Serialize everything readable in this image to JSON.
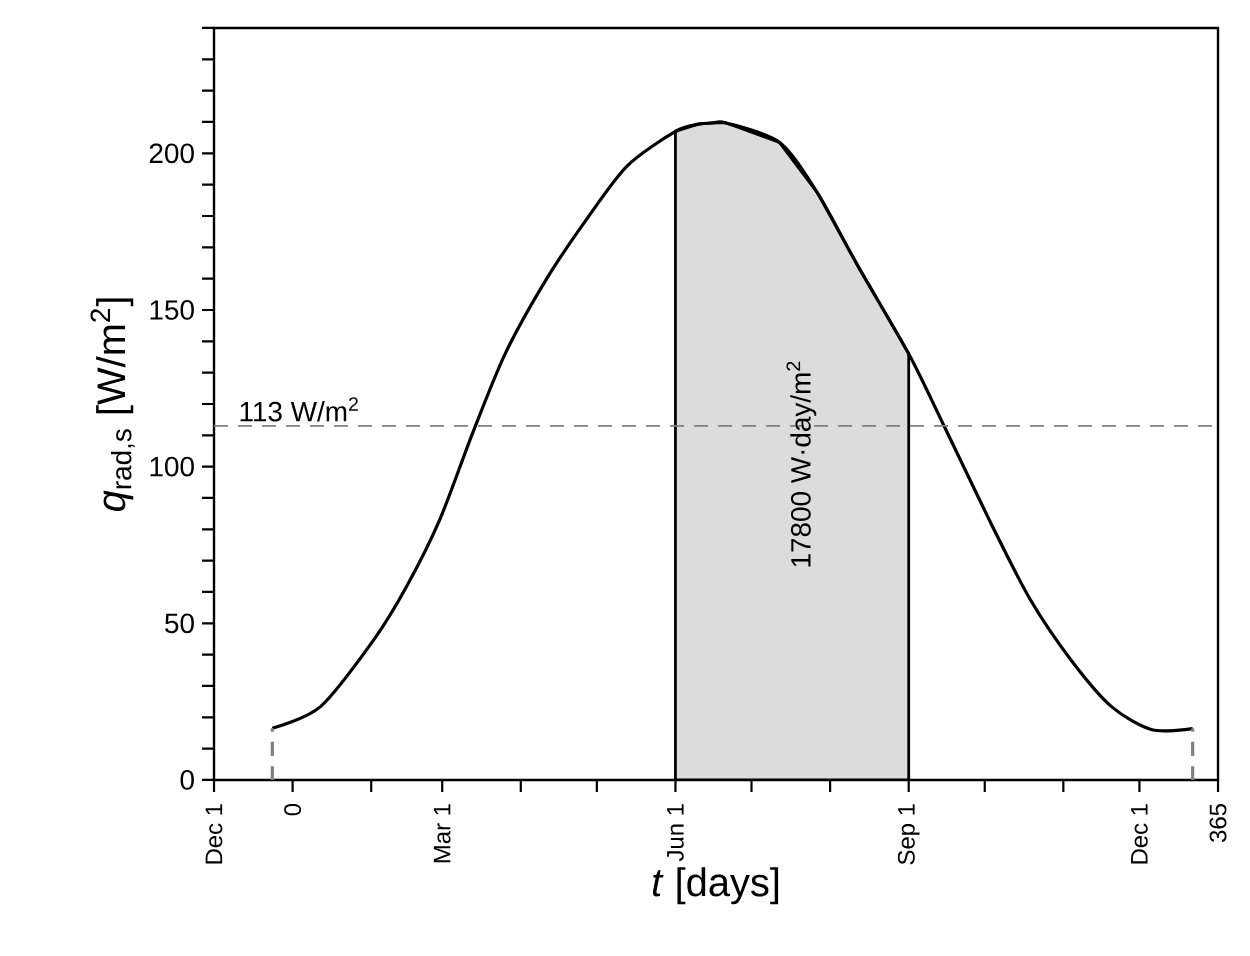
{
  "chart_data": {
    "type": "line",
    "xlabel": "*t* [days]",
    "ylabel": "*q*$_{rad,s}$  [W/m$^{2}$]",
    "xlim": [
      -31,
      365
    ],
    "ylim": [
      0,
      240
    ],
    "xticks": [
      {
        "value": -31,
        "label": "Dec 1"
      },
      0,
      {
        "value": 31,
        "label": null
      },
      {
        "value": 59,
        "label": "Mar 1"
      },
      {
        "value": 90,
        "label": null
      },
      {
        "value": 120,
        "label": null
      },
      {
        "value": 151,
        "label": "Jun 1"
      },
      {
        "value": 181,
        "label": null
      },
      {
        "value": 212,
        "label": null
      },
      {
        "value": 243,
        "label": "Sep 1"
      },
      {
        "value": 273,
        "label": null
      },
      {
        "value": 304,
        "label": null
      },
      {
        "value": 334,
        "label": "Dec 1"
      },
      365
    ],
    "yticks": [
      0,
      {
        "value": 10,
        "label": null
      },
      {
        "value": 20,
        "label": null
      },
      {
        "value": 30,
        "label": null
      },
      {
        "value": 40,
        "label": null
      },
      50,
      {
        "value": 60,
        "label": null
      },
      {
        "value": 70,
        "label": null
      },
      {
        "value": 80,
        "label": null
      },
      {
        "value": 90,
        "label": null
      },
      100,
      {
        "value": 110,
        "label": null
      },
      {
        "value": 120,
        "label": null
      },
      {
        "value": 130,
        "label": null
      },
      {
        "value": 140,
        "label": null
      },
      150,
      {
        "value": 160,
        "label": null
      },
      {
        "value": 170,
        "label": null
      },
      {
        "value": 180,
        "label": null
      },
      {
        "value": 190,
        "label": null
      },
      200,
      {
        "value": 210,
        "label": null
      },
      {
        "value": 220,
        "label": null
      },
      {
        "value": 230,
        "label": null
      },
      {
        "value": 240,
        "label": null
      }
    ],
    "ref_lines": [
      {
        "axis": "y",
        "value": 113,
        "label": "113 W/m$^{2}$",
        "color": "#808080",
        "line_style": "dashed"
      }
    ],
    "annotations": [
      "17800 W·day/m$^{2}$"
    ],
    "series": [
      {
        "type": "area",
        "color": "#dcdcdc",
        "x": [
          151,
          160,
          166,
          171,
          192,
          207,
          223,
          243
        ],
        "values": [
          207,
          209.3,
          209.7,
          209.7,
          203.5,
          187.4,
          164,
          136
        ]
      },
      {
        "color": "#000000",
        "x": [
          -8,
          11,
          32,
          45,
          58,
          71,
          84,
          100,
          116,
          132,
          151,
          160,
          166,
          171,
          192,
          207,
          223,
          243,
          257,
          276,
          291,
          307,
          323,
          339,
          355
        ],
        "values": [
          16.5,
          23.4,
          44.7,
          61.8,
          83,
          110.7,
          136.3,
          159.7,
          179,
          196,
          207,
          209.3,
          209.7,
          209.7,
          203.5,
          187.4,
          164,
          136,
          112.9,
          81,
          57.5,
          38.3,
          23.4,
          16,
          16.4
        ]
      },
      {
        "color": "#808080",
        "line_style": "dashed",
        "x": [
          -8,
          -8
        ],
        "values": [
          0,
          16.5
        ]
      },
      {
        "color": "#808080",
        "line_style": "dashed",
        "x": [
          355,
          355
        ],
        "values": [
          0,
          16.4
        ]
      }
    ]
  }
}
